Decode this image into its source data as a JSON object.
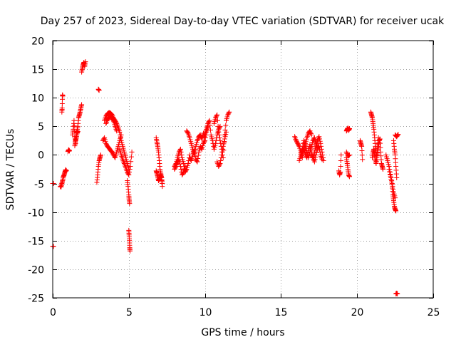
{
  "chart_data": {
    "type": "scatter",
    "title": "Day 257 of 2023, Sidereal Day-to-day VTEC variation (SDTVAR) for receiver ucak",
    "xlabel": "GPS time / hours",
    "ylabel": "SDTVAR / TECUs",
    "xlim": [
      0,
      25
    ],
    "ylim": [
      -25,
      20
    ],
    "xticks": [
      0,
      5,
      10,
      15,
      20,
      25
    ],
    "yticks": [
      -25,
      -20,
      -15,
      -10,
      -5,
      0,
      5,
      10,
      15,
      20
    ],
    "grid": true,
    "marker": "plus",
    "color": "#ff0000",
    "series": [
      {
        "name": "SDTVAR",
        "segments": [
          {
            "x": [
              0.0,
              0.05
            ],
            "y": [
              -16,
              -16
            ]
          },
          {
            "x": [
              0.0,
              0.05
            ],
            "y": [
              -5,
              -5
            ]
          },
          {
            "x": [
              0.5,
              0.55,
              0.6,
              0.65,
              0.7,
              0.75,
              0.8,
              0.85,
              0.9
            ],
            "y": [
              -5.5,
              -5.6,
              -5.0,
              -4.5,
              -3.8,
              -3.5,
              -3.0,
              -2.6,
              -2.8
            ]
          },
          {
            "x": [
              0.6,
              0.62,
              0.64,
              0.66
            ],
            "y": [
              7.5,
              8.2,
              10.5,
              10.3
            ]
          },
          {
            "x": [
              1.0,
              1.05,
              1.1
            ],
            "y": [
              0.6,
              0.9,
              0.7
            ]
          },
          {
            "x": [
              1.3,
              1.35,
              1.4,
              1.45,
              1.5,
              1.55,
              1.6,
              1.65,
              1.7,
              1.75,
              1.8,
              1.85,
              1.9
            ],
            "y": [
              3.5,
              4.5,
              6.0,
              3.2,
              2.0,
              3.8,
              4.2,
              5.0,
              6.5,
              7.0,
              7.5,
              8.2,
              8.8
            ]
          },
          {
            "x": [
              1.45,
              1.5,
              1.55,
              1.6,
              1.65
            ],
            "y": [
              1.6,
              2.5,
              3.0,
              3.8,
              4.1
            ]
          },
          {
            "x": [
              1.9,
              1.95,
              2.0,
              2.05,
              2.1,
              2.15
            ],
            "y": [
              14.5,
              15.2,
              15.8,
              16.2,
              15.5,
              16.3
            ]
          },
          {
            "x": [
              2.9,
              2.95,
              3.0,
              3.05,
              3.1,
              3.15
            ],
            "y": [
              -4.8,
              -3.5,
              -2.0,
              -1.0,
              -0.5,
              0.0
            ]
          },
          {
            "x": [
              3.0,
              3.05
            ],
            "y": [
              11.5,
              11.3
            ]
          },
          {
            "x": [
              3.4,
              3.5,
              3.6,
              3.7,
              3.8,
              3.9,
              4.0,
              4.1,
              4.2,
              4.3,
              4.4,
              4.5,
              4.6,
              4.7,
              4.8,
              4.9,
              5.0
            ],
            "y": [
              6.0,
              6.8,
              7.2,
              7.4,
              7.3,
              7.0,
              6.4,
              6.0,
              5.5,
              4.8,
              4.0,
              2.5,
              1.5,
              0.5,
              -0.5,
              -1.5,
              -2.5
            ]
          },
          {
            "x": [
              3.5,
              3.6,
              3.7,
              3.8,
              3.9,
              4.0,
              4.1,
              4.2
            ],
            "y": [
              5.5,
              6.2,
              6.5,
              6.8,
              6.4,
              5.9,
              5.0,
              4.2
            ]
          },
          {
            "x": [
              3.3,
              3.4,
              3.5,
              3.6,
              3.7,
              3.8,
              3.9,
              4.0,
              4.1,
              4.2,
              4.3,
              4.4,
              4.5
            ],
            "y": [
              2.5,
              3.0,
              2.0,
              1.5,
              1.2,
              0.8,
              0.5,
              0.0,
              -0.5,
              0.5,
              1.5,
              2.5,
              3.5
            ]
          },
          {
            "x": [
              4.4,
              4.5,
              4.6,
              4.7,
              4.8,
              4.9,
              5.0,
              5.1,
              5.2
            ],
            "y": [
              1.0,
              0.0,
              -0.8,
              -1.5,
              -2.2,
              -3.0,
              -3.5,
              -2.0,
              0.5
            ]
          },
          {
            "x": [
              4.9,
              4.95,
              5.0,
              5.02,
              5.05
            ],
            "y": [
              -4.5,
              -5.5,
              -7.0,
              -7.8,
              -8.5
            ]
          },
          {
            "x": [
              5.0,
              5.02,
              5.04,
              5.06,
              5.08
            ],
            "y": [
              -13.2,
              -14.0,
              -15.0,
              -16.2,
              -16.8
            ]
          },
          {
            "x": [
              6.8,
              6.85,
              6.9,
              6.95,
              7.0,
              7.05,
              7.1,
              7.15,
              7.2
            ],
            "y": [
              3.0,
              2.2,
              1.5,
              0.5,
              -1.0,
              -2.5,
              -3.5,
              -4.0,
              -5.0
            ]
          },
          {
            "x": [
              6.8,
              6.85,
              6.9,
              6.95,
              7.0,
              7.05,
              7.1,
              7.15,
              7.2
            ],
            "y": [
              -2.8,
              -3.2,
              -3.8,
              -4.5,
              -4.2,
              -3.8,
              -3.2,
              -4.0,
              -5.5
            ]
          },
          {
            "x": [
              8.0,
              8.1,
              8.2,
              8.3,
              8.4,
              8.5,
              8.6,
              8.7,
              8.8,
              8.9,
              9.0
            ],
            "y": [
              -2.0,
              -1.5,
              -0.5,
              0.5,
              1.0,
              -0.5,
              -1.5,
              -3.0,
              -2.5,
              -1.5,
              0.0
            ]
          },
          {
            "x": [
              8.0,
              8.1,
              8.2,
              8.3,
              8.4,
              8.5,
              8.6,
              8.7
            ],
            "y": [
              -2.5,
              -2.0,
              -1.2,
              -0.8,
              -2.0,
              -3.5,
              -3.0,
              -2.0
            ]
          },
          {
            "x": [
              8.8,
              8.9,
              9.0,
              9.1,
              9.2,
              9.3,
              9.4,
              9.5,
              9.6,
              9.7,
              9.8,
              9.9,
              10.0
            ],
            "y": [
              4.2,
              3.8,
              3.0,
              2.0,
              1.0,
              0.0,
              1.5,
              2.5,
              3.2,
              3.5,
              2.8,
              3.8,
              3.0
            ]
          },
          {
            "x": [
              9.0,
              9.1,
              9.2,
              9.3,
              9.4,
              9.5,
              9.6,
              9.7,
              9.8,
              9.9,
              10.0,
              10.1,
              10.2
            ],
            "y": [
              -0.5,
              -1.0,
              0.0,
              0.8,
              -0.8,
              -1.2,
              0.5,
              1.5,
              1.0,
              2.0,
              2.5,
              4.0,
              5.0
            ]
          },
          {
            "x": [
              10.0,
              10.1,
              10.2,
              10.3,
              10.4,
              10.5,
              10.6,
              10.7,
              10.8,
              10.9,
              11.0
            ],
            "y": [
              3.5,
              4.5,
              5.5,
              6.0,
              3.5,
              2.5,
              1.0,
              2.0,
              3.5,
              4.5,
              5.0
            ]
          },
          {
            "x": [
              10.6,
              10.7,
              10.8,
              10.9,
              11.0,
              11.1,
              11.2,
              11.3,
              11.4,
              11.5,
              11.6
            ],
            "y": [
              5.5,
              6.5,
              7.0,
              4.0,
              2.5,
              1.0,
              -0.5,
              3.5,
              6.0,
              7.0,
              7.5
            ]
          },
          {
            "x": [
              10.8,
              10.9,
              11.0,
              11.1,
              11.2,
              11.3,
              11.4
            ],
            "y": [
              -1.2,
              -2.0,
              -1.5,
              0.0,
              1.5,
              2.8,
              4.0
            ]
          },
          {
            "x": [
              15.9,
              16.0,
              16.1,
              16.2,
              16.3,
              16.4,
              16.5,
              16.6,
              16.7,
              16.8,
              16.9,
              17.0
            ],
            "y": [
              3.2,
              2.5,
              2.0,
              1.5,
              0.5,
              -0.5,
              1.0,
              2.0,
              3.0,
              3.8,
              4.2,
              3.5
            ]
          },
          {
            "x": [
              16.2,
              16.3,
              16.4,
              16.5,
              16.6,
              16.7,
              16.8,
              16.9,
              17.0,
              17.1,
              17.2,
              17.3,
              17.4
            ],
            "y": [
              -1.0,
              0.0,
              1.0,
              2.5,
              1.5,
              0.5,
              -0.5,
              0.5,
              1.5,
              2.5,
              3.0,
              2.0,
              1.0
            ]
          },
          {
            "x": [
              17.0,
              17.1,
              17.2,
              17.3,
              17.4,
              17.5,
              17.6,
              17.7,
              17.8
            ],
            "y": [
              0.0,
              -0.5,
              0.5,
              1.5,
              2.5,
              3.2,
              2.0,
              0.5,
              -1.0
            ]
          },
          {
            "x": [
              16.4,
              16.5,
              16.6,
              16.7,
              16.8,
              16.9,
              17.0,
              17.1,
              17.2,
              17.3,
              17.4,
              17.5,
              17.6,
              17.7
            ],
            "y": [
              0.5,
              1.0,
              0.2,
              -0.5,
              0.8,
              1.8,
              0.5,
              -0.5,
              -1.2,
              0.0,
              1.2,
              1.5,
              0.0,
              -0.8
            ]
          },
          {
            "x": [
              18.8,
              18.85,
              18.9,
              18.95
            ],
            "y": [
              -2.8,
              -3.5,
              -3.0,
              0.0
            ]
          },
          {
            "x": [
              19.3,
              19.35,
              19.4,
              19.45,
              19.5
            ],
            "y": [
              4.2,
              4.5,
              4.7,
              4.3,
              4.6
            ]
          },
          {
            "x": [
              19.3,
              19.35,
              19.4,
              19.45,
              19.5
            ],
            "y": [
              -0.5,
              -1.5,
              -2.5,
              -3.5,
              -3.8
            ]
          },
          {
            "x": [
              19.3,
              19.4,
              19.5
            ],
            "y": [
              0.5,
              -0.2,
              0.0
            ]
          },
          {
            "x": [
              20.2,
              20.25,
              20.3,
              20.35
            ],
            "y": [
              2.5,
              2.0,
              1.5,
              -0.8
            ]
          },
          {
            "x": [
              20.9,
              20.95,
              21.0,
              21.05,
              21.1,
              21.15,
              21.2,
              21.25,
              21.3,
              21.35,
              21.4
            ],
            "y": [
              7.5,
              7.0,
              6.5,
              5.5,
              4.5,
              3.0,
              1.5,
              0.5,
              -0.5,
              1.5,
              3.0
            ]
          },
          {
            "x": [
              21.0,
              21.05,
              21.1,
              21.15,
              21.2,
              21.25,
              21.3,
              21.35,
              21.4,
              21.45,
              21.5,
              21.55,
              21.6,
              21.65,
              21.7
            ],
            "y": [
              -0.5,
              0.5,
              1.0,
              0.0,
              -0.8,
              -1.5,
              -0.5,
              0.8,
              1.5,
              2.5,
              2.8,
              0.5,
              -1.5,
              -2.0,
              -2.5
            ]
          },
          {
            "x": [
              21.9,
              22.0,
              22.1,
              22.2,
              22.3,
              22.4,
              22.5
            ],
            "y": [
              0.0,
              -1.0,
              -2.0,
              -3.5,
              -5.0,
              -6.5,
              -7.5
            ]
          },
          {
            "x": [
              22.1,
              22.2,
              22.3,
              22.35,
              22.4,
              22.45,
              22.5,
              22.55
            ],
            "y": [
              -2.5,
              -3.8,
              -5.2,
              -7.0,
              -8.0,
              -9.0,
              -9.5,
              -9.8
            ]
          },
          {
            "x": [
              22.4,
              22.45,
              22.5,
              22.55,
              22.6
            ],
            "y": [
              2.5,
              1.0,
              0.0,
              -2.0,
              -4.0
            ]
          },
          {
            "x": [
              22.5,
              22.6,
              22.7
            ],
            "y": [
              3.5,
              3.2,
              3.6
            ]
          },
          {
            "x": [
              22.55,
              22.6,
              22.65
            ],
            "y": [
              -24.3,
              -24.2,
              -24.3
            ]
          }
        ]
      }
    ]
  }
}
